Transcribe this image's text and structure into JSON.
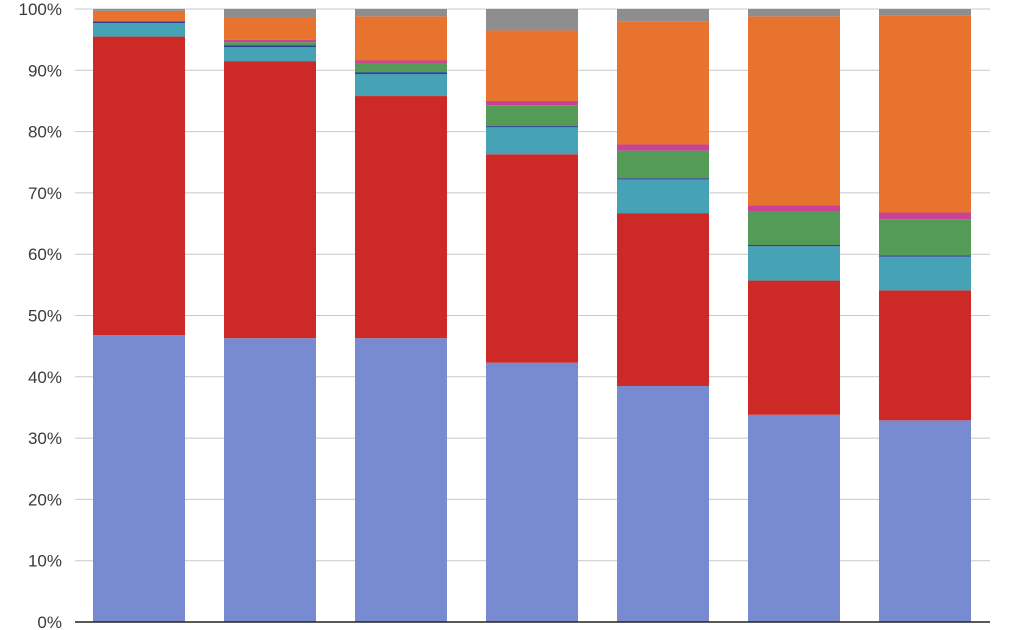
{
  "chart_data": {
    "type": "bar",
    "stacked": true,
    "normalized": true,
    "categories": [
      "",
      "",
      "",
      "",
      "",
      "",
      ""
    ],
    "ylim": [
      0,
      100
    ],
    "yticks": [
      0,
      10,
      20,
      30,
      40,
      50,
      60,
      70,
      80,
      90,
      100
    ],
    "ytick_labels": [
      "0%",
      "10%",
      "20%",
      "30%",
      "40%",
      "50%",
      "60%",
      "70%",
      "80%",
      "90%",
      "100%"
    ],
    "grid": true,
    "legend": "none",
    "series": [
      {
        "color": "#788BD0",
        "values": [
          46.8,
          46.3,
          46.3,
          42.3,
          38.5,
          33.8,
          32.9
        ]
      },
      {
        "color": "#CD2A27",
        "values": [
          48.7,
          45.2,
          39.5,
          34.0,
          28.2,
          21.9,
          21.2
        ]
      },
      {
        "color": "#46A2B5",
        "values": [
          2.2,
          2.3,
          3.6,
          4.4,
          5.5,
          5.6,
          5.5
        ]
      },
      {
        "color": "#2B3F96",
        "values": [
          0.3,
          0.3,
          0.3,
          0.2,
          0.2,
          0.2,
          0.2
        ]
      },
      {
        "color": "#559B58",
        "values": [
          0.0,
          0.5,
          1.5,
          3.4,
          4.5,
          5.4,
          5.9
        ]
      },
      {
        "color": "#C84396",
        "values": [
          0.0,
          0.4,
          0.4,
          0.7,
          1.0,
          1.1,
          1.1
        ]
      },
      {
        "color": "#E8732E",
        "values": [
          1.7,
          3.7,
          7.2,
          11.5,
          20.0,
          30.8,
          32.2
        ]
      },
      {
        "color": "#8E8E8E",
        "values": [
          0.3,
          1.3,
          1.2,
          3.5,
          2.1,
          1.2,
          1.0
        ]
      }
    ]
  }
}
